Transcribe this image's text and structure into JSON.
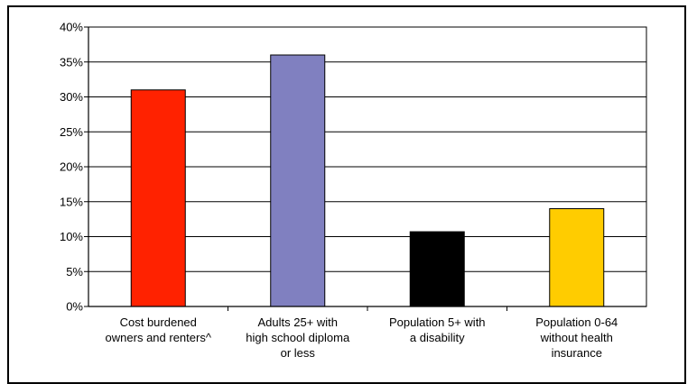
{
  "chart_data": {
    "type": "bar",
    "categories": [
      [
        "Cost burdened",
        "owners and renters^"
      ],
      [
        "Adults 25+ with",
        "high school diploma",
        "or less"
      ],
      [
        "Population 5+ with",
        "a disability"
      ],
      [
        "Population 0-64",
        "without health",
        "insurance"
      ]
    ],
    "values": [
      0.31,
      0.36,
      0.107,
      0.14
    ],
    "colors": [
      "#FF2200",
      "#8080C0",
      "#000000",
      "#FFCC00"
    ],
    "y_ticks": [
      "0%",
      "5%",
      "10%",
      "15%",
      "20%",
      "25%",
      "30%",
      "35%",
      "40%"
    ],
    "ylim": [
      0,
      0.4
    ],
    "grid": true,
    "legend": "none",
    "title": "",
    "xlabel": "",
    "ylabel": ""
  }
}
